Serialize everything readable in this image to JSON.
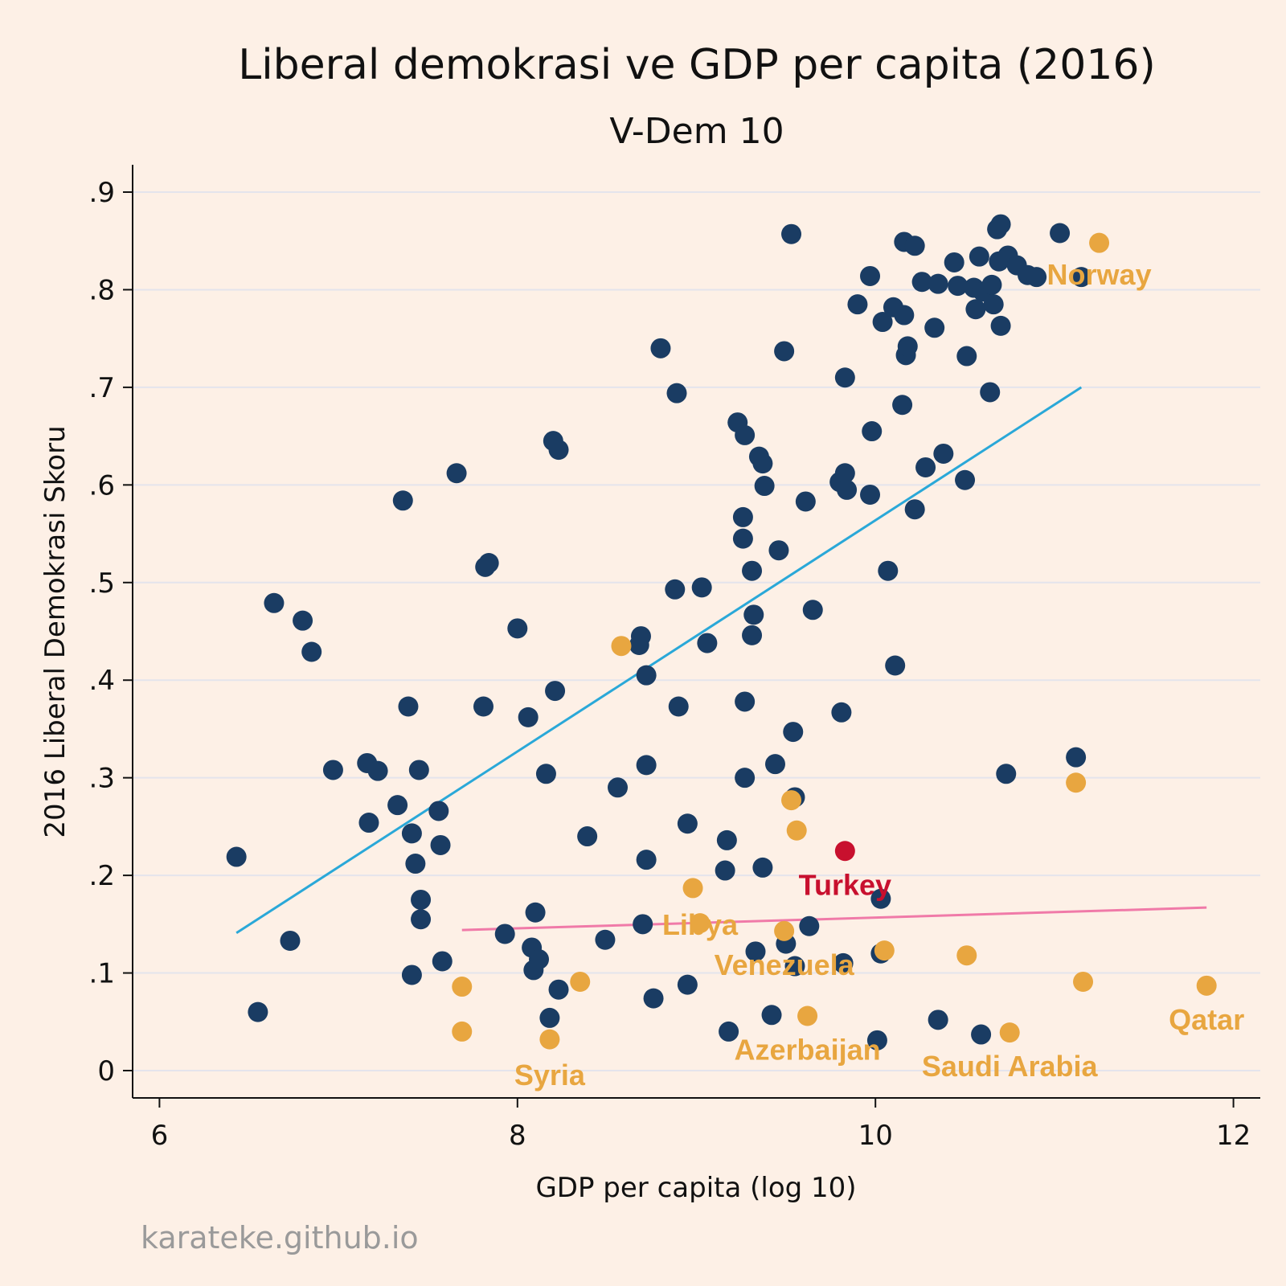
{
  "chart_data": {
    "type": "scatter",
    "title": "Liberal demokrasi ve GDP per capita (2016)",
    "subtitle": "V-Dem 10",
    "xlabel": "GDP per capita (log 10)",
    "ylabel": "2016 Liberal Demokrasi Skoru",
    "xlim": [
      5.85,
      12.15
    ],
    "ylim": [
      -0.028,
      0.928
    ],
    "x_ticks": [
      6,
      8,
      10,
      12
    ],
    "x_tick_labels": [
      "6",
      "8",
      "10",
      "12"
    ],
    "y_ticks": [
      0,
      0.1,
      0.2,
      0.3,
      0.4,
      0.5,
      0.6,
      0.7,
      0.8,
      0.9
    ],
    "y_tick_labels": [
      "0",
      ".1",
      ".2",
      ".3",
      ".4",
      ".5",
      ".6",
      ".7",
      ".8",
      ".9"
    ],
    "grid": true,
    "colors": {
      "background": "#fdf0e6",
      "main": "#1a3c63",
      "highlight": "#e8a640",
      "turkey": "#c8102e",
      "fit_all": "#2aa8d8",
      "fit_highlight": "#f07aa8",
      "grid": "#e4e4ec"
    },
    "series": [
      {
        "color": "#1a3c63",
        "points": [
          [
            6.43,
            0.219
          ],
          [
            6.55,
            0.06
          ],
          [
            6.64,
            0.479
          ],
          [
            6.73,
            0.133
          ],
          [
            6.8,
            0.461
          ],
          [
            6.85,
            0.429
          ],
          [
            6.97,
            0.308
          ],
          [
            7.16,
            0.315
          ],
          [
            7.17,
            0.254
          ],
          [
            7.22,
            0.307
          ],
          [
            7.33,
            0.272
          ],
          [
            7.36,
            0.584
          ],
          [
            7.39,
            0.373
          ],
          [
            7.41,
            0.243
          ],
          [
            7.41,
            0.098
          ],
          [
            7.43,
            0.212
          ],
          [
            7.45,
            0.308
          ],
          [
            7.46,
            0.175
          ],
          [
            7.46,
            0.155
          ],
          [
            7.56,
            0.266
          ],
          [
            7.57,
            0.231
          ],
          [
            7.58,
            0.112
          ],
          [
            7.66,
            0.612
          ],
          [
            7.81,
            0.373
          ],
          [
            7.82,
            0.516
          ],
          [
            7.84,
            0.52
          ],
          [
            7.93,
            0.14
          ],
          [
            8.0,
            0.453
          ],
          [
            8.06,
            0.362
          ],
          [
            8.08,
            0.126
          ],
          [
            8.09,
            0.103
          ],
          [
            8.1,
            0.162
          ],
          [
            8.12,
            0.114
          ],
          [
            8.16,
            0.304
          ],
          [
            8.18,
            0.054
          ],
          [
            8.2,
            0.645
          ],
          [
            8.21,
            0.389
          ],
          [
            8.23,
            0.636
          ],
          [
            8.23,
            0.083
          ],
          [
            8.39,
            0.24
          ],
          [
            8.49,
            0.134
          ],
          [
            8.56,
            0.29
          ],
          [
            8.68,
            0.436
          ],
          [
            8.69,
            0.445
          ],
          [
            8.7,
            0.15
          ],
          [
            8.72,
            0.313
          ],
          [
            8.72,
            0.216
          ],
          [
            8.72,
            0.405
          ],
          [
            8.76,
            0.074
          ],
          [
            8.8,
            0.74
          ],
          [
            8.88,
            0.493
          ],
          [
            8.89,
            0.694
          ],
          [
            8.9,
            0.373
          ],
          [
            8.95,
            0.253
          ],
          [
            8.95,
            0.088
          ],
          [
            9.03,
            0.495
          ],
          [
            9.06,
            0.438
          ],
          [
            9.16,
            0.205
          ],
          [
            9.17,
            0.236
          ],
          [
            9.18,
            0.04
          ],
          [
            9.23,
            0.664
          ],
          [
            9.26,
            0.545
          ],
          [
            9.26,
            0.567
          ],
          [
            9.27,
            0.651
          ],
          [
            9.27,
            0.378
          ],
          [
            9.27,
            0.3
          ],
          [
            9.31,
            0.512
          ],
          [
            9.31,
            0.446
          ],
          [
            9.32,
            0.467
          ],
          [
            9.33,
            0.122
          ],
          [
            9.35,
            0.629
          ],
          [
            9.37,
            0.622
          ],
          [
            9.37,
            0.208
          ],
          [
            9.38,
            0.599
          ],
          [
            9.42,
            0.057
          ],
          [
            9.44,
            0.314
          ],
          [
            9.46,
            0.533
          ],
          [
            9.49,
            0.737
          ],
          [
            9.5,
            0.13
          ],
          [
            9.53,
            0.857
          ],
          [
            9.54,
            0.347
          ],
          [
            9.55,
            0.28
          ],
          [
            9.55,
            0.107
          ],
          [
            9.61,
            0.583
          ],
          [
            9.63,
            0.148
          ],
          [
            9.65,
            0.472
          ],
          [
            9.8,
            0.603
          ],
          [
            9.81,
            0.367
          ],
          [
            9.82,
            0.11
          ],
          [
            9.83,
            0.612
          ],
          [
            9.83,
            0.71
          ],
          [
            9.84,
            0.595
          ],
          [
            9.9,
            0.785
          ],
          [
            9.97,
            0.814
          ],
          [
            9.97,
            0.59
          ],
          [
            9.98,
            0.655
          ],
          [
            10.01,
            0.031
          ],
          [
            10.03,
            0.12
          ],
          [
            10.03,
            0.176
          ],
          [
            10.04,
            0.767
          ],
          [
            10.07,
            0.512
          ],
          [
            10.1,
            0.782
          ],
          [
            10.11,
            0.415
          ],
          [
            10.15,
            0.682
          ],
          [
            10.16,
            0.849
          ],
          [
            10.16,
            0.774
          ],
          [
            10.17,
            0.733
          ],
          [
            10.18,
            0.742
          ],
          [
            10.22,
            0.845
          ],
          [
            10.22,
            0.575
          ],
          [
            10.26,
            0.808
          ],
          [
            10.28,
            0.618
          ],
          [
            10.33,
            0.761
          ],
          [
            10.35,
            0.806
          ],
          [
            10.35,
            0.052
          ],
          [
            10.38,
            0.632
          ],
          [
            10.44,
            0.828
          ],
          [
            10.46,
            0.804
          ],
          [
            10.5,
            0.605
          ],
          [
            10.51,
            0.732
          ],
          [
            10.55,
            0.802
          ],
          [
            10.56,
            0.78
          ],
          [
            10.58,
            0.834
          ],
          [
            10.59,
            0.037
          ],
          [
            10.6,
            0.798
          ],
          [
            10.64,
            0.695
          ],
          [
            10.65,
            0.805
          ],
          [
            10.66,
            0.785
          ],
          [
            10.68,
            0.862
          ],
          [
            10.69,
            0.829
          ],
          [
            10.7,
            0.867
          ],
          [
            10.7,
            0.763
          ],
          [
            10.73,
            0.304
          ],
          [
            10.74,
            0.835
          ],
          [
            10.79,
            0.825
          ],
          [
            10.85,
            0.815
          ],
          [
            10.9,
            0.813
          ],
          [
            11.03,
            0.858
          ],
          [
            11.12,
            0.321
          ],
          [
            11.15,
            0.813
          ]
        ]
      },
      {
        "color": "#e8a640",
        "points": [
          [
            7.69,
            0.086
          ],
          [
            7.69,
            0.04
          ],
          [
            8.18,
            0.032
          ],
          [
            8.35,
            0.091
          ],
          [
            8.58,
            0.435
          ],
          [
            8.98,
            0.187
          ],
          [
            9.02,
            0.151
          ],
          [
            9.49,
            0.143
          ],
          [
            9.53,
            0.277
          ],
          [
            9.56,
            0.246
          ],
          [
            9.62,
            0.056
          ],
          [
            10.05,
            0.123
          ],
          [
            10.51,
            0.118
          ],
          [
            10.75,
            0.039
          ],
          [
            11.12,
            0.295
          ],
          [
            11.16,
            0.091
          ],
          [
            11.25,
            0.848
          ],
          [
            11.85,
            0.087
          ]
        ]
      },
      {
        "color": "#c8102e",
        "points": [
          [
            9.83,
            0.225
          ]
        ]
      }
    ],
    "fit_lines": [
      {
        "color": "#2aa8d8",
        "x": [
          6.43,
          11.15
        ],
        "y": [
          0.141,
          0.7
        ]
      },
      {
        "color": "#f07aa8",
        "x": [
          7.69,
          11.85
        ],
        "y": [
          0.144,
          0.167
        ]
      }
    ],
    "annotations": [
      {
        "text": "Norway",
        "x": 11.25,
        "y": 0.815,
        "color": "#e8a640"
      },
      {
        "text": "Turkey",
        "x": 9.83,
        "y": 0.19,
        "color": "#c8102e"
      },
      {
        "text": "Libya",
        "x": 9.02,
        "y": 0.149,
        "color": "#e8a640"
      },
      {
        "text": "Venezuela",
        "x": 9.49,
        "y": 0.108,
        "color": "#e8a640"
      },
      {
        "text": "Azerbaijan",
        "x": 9.62,
        "y": 0.021,
        "color": "#e8a640"
      },
      {
        "text": "Syria",
        "x": 8.18,
        "y": -0.005,
        "color": "#e8a640"
      },
      {
        "text": "Saudi Arabia",
        "x": 10.75,
        "y": 0.004,
        "color": "#e8a640"
      },
      {
        "text": "Qatar",
        "x": 11.85,
        "y": 0.052,
        "color": "#e8a640"
      }
    ]
  },
  "credit": "karateke.github.io"
}
